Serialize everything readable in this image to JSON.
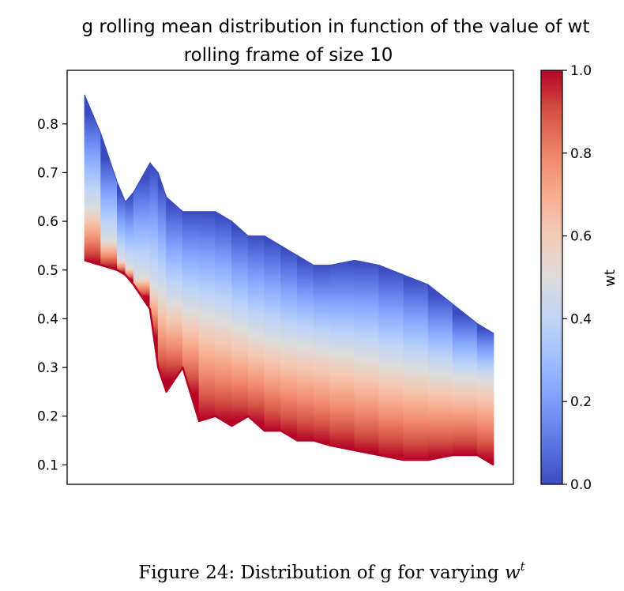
{
  "chart_data": {
    "type": "area",
    "title_line1": "g rolling mean distribution in function of the value of wt",
    "title_line2": "rolling frame of size 10",
    "xlabel": "",
    "ylabel": "",
    "ylim": [
      0.06,
      0.91
    ],
    "yticks": [
      "0.1",
      "0.2",
      "0.3",
      "0.4",
      "0.5",
      "0.6",
      "0.7",
      "0.8"
    ],
    "ytick_values": [
      0.1,
      0.2,
      0.3,
      0.4,
      0.5,
      0.6,
      0.7,
      0.8
    ],
    "x_index": [
      0,
      4,
      8,
      10,
      12,
      16,
      18,
      20,
      24,
      28,
      32,
      36,
      40,
      44,
      48,
      52,
      56,
      60,
      66,
      72,
      78,
      84,
      90,
      96,
      100
    ],
    "series": [
      {
        "name": "wt = 0.0",
        "values": [
          0.86,
          0.78,
          0.68,
          0.64,
          0.66,
          0.72,
          0.7,
          0.65,
          0.62,
          0.62,
          0.62,
          0.6,
          0.57,
          0.57,
          0.55,
          0.53,
          0.51,
          0.51,
          0.52,
          0.51,
          0.49,
          0.47,
          0.43,
          0.39,
          0.37
        ]
      },
      {
        "name": "wt = 0.5",
        "values": [
          0.66,
          0.59,
          0.53,
          0.51,
          0.5,
          0.47,
          0.46,
          0.44,
          0.42,
          0.41,
          0.4,
          0.39,
          0.37,
          0.36,
          0.35,
          0.345,
          0.34,
          0.33,
          0.325,
          0.31,
          0.3,
          0.29,
          0.28,
          0.275,
          0.27
        ]
      },
      {
        "name": "wt = 1.0",
        "values": [
          0.52,
          0.51,
          0.5,
          0.49,
          0.47,
          0.42,
          0.3,
          0.25,
          0.3,
          0.19,
          0.2,
          0.18,
          0.2,
          0.17,
          0.17,
          0.15,
          0.15,
          0.14,
          0.13,
          0.12,
          0.11,
          0.11,
          0.12,
          0.12,
          0.1
        ]
      }
    ],
    "colorbar": {
      "label": "wt",
      "range": [
        0.0,
        1.0
      ],
      "ticks": [
        "0.0",
        "0.2",
        "0.4",
        "0.6",
        "0.8",
        "1.0"
      ],
      "tick_values": [
        0.0,
        0.2,
        0.4,
        0.6,
        0.8,
        1.0
      ],
      "colormap": "coolwarm",
      "colors": [
        "#3b4cc0",
        "#5977e3",
        "#7b9ff9",
        "#9ebeff",
        "#c0d4f5",
        "#dddcdc",
        "#f2cbb7",
        "#f7ac8e",
        "#ee8468",
        "#d65244",
        "#b40426"
      ]
    },
    "grid": false,
    "legend": "none"
  },
  "caption": {
    "text": "Figure 24: Distribution of g for varying ",
    "var": "w",
    "sup": "t"
  }
}
